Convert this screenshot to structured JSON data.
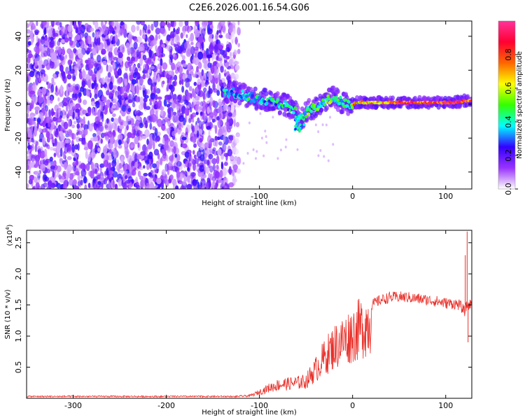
{
  "title": "C2E6.2026.001.16.54.G06",
  "chart_data": [
    {
      "type": "heatmap",
      "name": "spectrogram",
      "xlabel": "Height of straight line (km)",
      "ylabel": "Frequency (Hz)",
      "xlim": [
        -350,
        128
      ],
      "ylim": [
        -50,
        49
      ],
      "xticks": [
        -300,
        -200,
        -100,
        0,
        100
      ],
      "xtick_labels": [
        "-300",
        "-200",
        "-100",
        "0",
        "100"
      ],
      "yticks": [
        -40,
        -20,
        0,
        20,
        40
      ],
      "ytick_labels": [
        "-40",
        "-20",
        "0",
        "20",
        "40"
      ],
      "noise_region_end_km": -130,
      "ridge": {
        "x": [
          -138,
          -130,
          -120,
          -110,
          -100,
          -90,
          -80,
          -70,
          -62,
          -56,
          -50,
          -45,
          -40,
          -35,
          -30,
          -25,
          -20,
          -15,
          -10,
          -5,
          0,
          5,
          10,
          20,
          40,
          60,
          80,
          100,
          110,
          120,
          128
        ],
        "y": [
          7,
          7,
          6,
          4,
          3,
          2,
          1,
          -1,
          -4,
          -10,
          -5,
          -3,
          -2,
          0,
          2,
          3,
          4,
          2,
          1,
          0,
          0,
          1,
          1,
          1,
          1,
          1,
          1,
          1,
          1,
          2,
          2
        ]
      },
      "colorbar": {
        "label": "Normalized spectral amplitude",
        "range": [
          0.0,
          1.0
        ],
        "ticks": [
          0.0,
          0.2,
          0.4,
          0.6,
          0.8
        ],
        "tick_labels": [
          "0.0",
          "0.2",
          "0.4",
          "0.6",
          "0.8"
        ],
        "colors": [
          "#ffffff",
          "#9933ff",
          "#3300ff",
          "#00ffff",
          "#33ff00",
          "#ffff00",
          "#ff6600",
          "#ff0033",
          "#ff3399"
        ]
      }
    },
    {
      "type": "line",
      "name": "snr",
      "xlabel": "Height of straight line (km)",
      "ylabel": "SNR (10 * v/v)",
      "y_multiplier": "(x10⁴)",
      "y_multiplier_base": "(x10",
      "y_multiplier_exp": "4",
      "y_multiplier_close": ")",
      "xlim": [
        -350,
        128
      ],
      "ylim": [
        0.0,
        2.7
      ],
      "xticks": [
        -300,
        -200,
        -100,
        0,
        100
      ],
      "xtick_labels": [
        "-300",
        "-200",
        "-100",
        "0",
        "100"
      ],
      "yticks": [
        0.5,
        1.0,
        1.5,
        2.0,
        2.5
      ],
      "ytick_labels": [
        "0.5",
        "1.0",
        "1.5",
        "2.0",
        "2.5"
      ],
      "color": "#e8302a",
      "envelope": {
        "x": [
          -350,
          -130,
          -110,
          -100,
          -90,
          -80,
          -70,
          -60,
          -50,
          -45,
          -40,
          -35,
          -30,
          -25,
          -20,
          -10,
          0,
          10,
          20,
          30,
          40,
          50,
          60,
          70,
          80,
          90,
          100,
          110,
          115,
          120,
          123,
          128
        ],
        "y": [
          0.03,
          0.03,
          0.05,
          0.12,
          0.2,
          0.26,
          0.28,
          0.3,
          0.33,
          0.45,
          0.55,
          0.68,
          0.8,
          0.9,
          1.0,
          1.12,
          1.25,
          1.38,
          1.5,
          1.58,
          1.62,
          1.63,
          1.62,
          1.6,
          1.58,
          1.56,
          1.53,
          1.52,
          1.5,
          1.4,
          1.5,
          1.51
        ]
      },
      "spikes": [
        {
          "x": 121,
          "y": 2.3
        },
        {
          "x": 123,
          "y": 2.68
        },
        {
          "x": 124,
          "y": 0.9
        }
      ]
    }
  ]
}
